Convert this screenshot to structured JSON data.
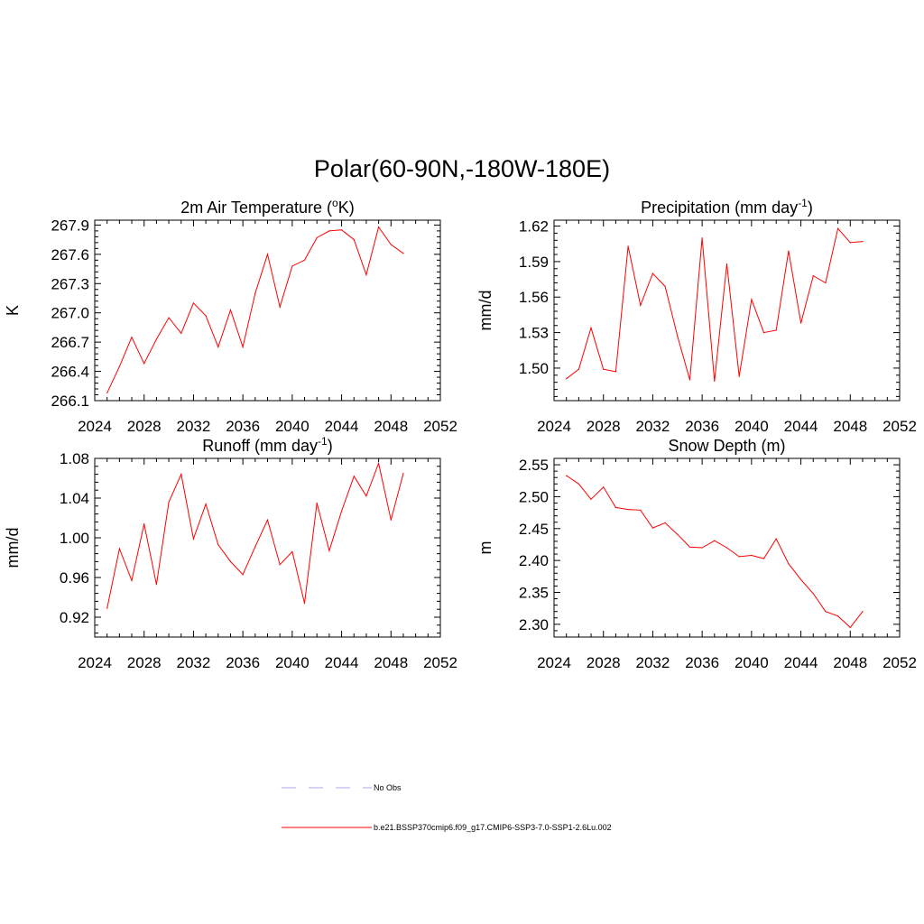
{
  "figure": {
    "title": "Polar(60-90N,-180W-180E)"
  },
  "colors": {
    "model": "#ff0000",
    "obs": "#aaaaee"
  },
  "legend": {
    "items": [
      {
        "label": "No Obs",
        "style": "dashed",
        "color": "#aaaaee"
      },
      {
        "label": "b.e21.BSSP370cmip6.f09_g17.CMIP6-SSP3-7.0-SSP1-2.6Lu.002",
        "style": "solid",
        "color": "#ff0000"
      }
    ]
  },
  "chart_data": [
    {
      "type": "line",
      "title": "2m Air Temperature (",
      "title_super": "o",
      "title_after": "K)",
      "ylabel": "K",
      "xlim": [
        2024,
        2052
      ],
      "xticks": [
        2024,
        2028,
        2032,
        2036,
        2040,
        2044,
        2048,
        2052
      ],
      "ylim": [
        266.1,
        267.95
      ],
      "yticks": [
        266.1,
        266.4,
        266.7,
        267.0,
        267.3,
        267.6,
        267.9
      ],
      "ytick_labels": [
        "266.1",
        "266.4",
        "266.7",
        "267.0",
        "267.3",
        "267.6",
        "267.9"
      ],
      "series": [
        {
          "x": [
            2025,
            2026,
            2027,
            2028,
            2029,
            2030,
            2031,
            2032,
            2033,
            2034,
            2035,
            2036,
            2037,
            2038,
            2039,
            2040,
            2041,
            2042,
            2043,
            2044,
            2045,
            2046,
            2047,
            2048,
            2049
          ],
          "values": [
            266.18,
            266.45,
            266.75,
            266.48,
            266.73,
            266.95,
            266.79,
            267.1,
            266.97,
            266.65,
            267.03,
            266.65,
            267.2,
            267.6,
            267.06,
            267.48,
            267.54,
            267.77,
            267.84,
            267.85,
            267.75,
            267.39,
            267.88,
            267.7,
            267.61
          ]
        }
      ]
    },
    {
      "type": "line",
      "title": "Precipitation (mm day",
      "title_super": "-1",
      "title_after": ")",
      "ylabel": "mm/d",
      "xlim": [
        2024,
        2052
      ],
      "xticks": [
        2024,
        2028,
        2032,
        2036,
        2040,
        2044,
        2048,
        2052
      ],
      "ylim": [
        1.4725,
        1.625
      ],
      "yticks": [
        1.5,
        1.53,
        1.56,
        1.59,
        1.62
      ],
      "ytick_labels": [
        "1.50",
        "1.53",
        "1.56",
        "1.59",
        "1.62"
      ],
      "series": [
        {
          "x": [
            2025,
            2026,
            2027,
            2028,
            2029,
            2030,
            2031,
            2032,
            2033,
            2034,
            2035,
            2036,
            2037,
            2038,
            2039,
            2040,
            2041,
            2042,
            2043,
            2044,
            2045,
            2046,
            2047,
            2048,
            2049
          ],
          "values": [
            1.491,
            1.499,
            1.534,
            1.499,
            1.497,
            1.603,
            1.553,
            1.58,
            1.569,
            1.527,
            1.49,
            1.61,
            1.489,
            1.588,
            1.493,
            1.558,
            1.53,
            1.532,
            1.599,
            1.538,
            1.578,
            1.572,
            1.618,
            1.606,
            1.607
          ]
        }
      ]
    },
    {
      "type": "line",
      "title": "Runoff (mm day",
      "title_super": "-1",
      "title_after": ")",
      "ylabel": "mm/d",
      "xlim": [
        2024,
        2052
      ],
      "xticks": [
        2024,
        2028,
        2032,
        2036,
        2040,
        2044,
        2048,
        2052
      ],
      "ylim": [
        0.9,
        1.08
      ],
      "yticks": [
        0.92,
        0.96,
        1.0,
        1.04,
        1.08
      ],
      "ytick_labels": [
        "0.92",
        "0.96",
        "1.00",
        "1.04",
        "1.08"
      ],
      "series": [
        {
          "x": [
            2025,
            2026,
            2027,
            2028,
            2029,
            2030,
            2031,
            2032,
            2033,
            2034,
            2035,
            2036,
            2037,
            2038,
            2039,
            2040,
            2041,
            2042,
            2043,
            2044,
            2045,
            2046,
            2047,
            2048,
            2049
          ],
          "values": [
            0.929,
            0.989,
            0.957,
            1.014,
            0.953,
            1.036,
            1.064,
            0.999,
            1.034,
            0.993,
            0.976,
            0.963,
            0.991,
            1.018,
            0.973,
            0.986,
            0.934,
            1.035,
            0.987,
            1.027,
            1.062,
            1.042,
            1.075,
            1.018,
            1.065
          ]
        }
      ]
    },
    {
      "type": "line",
      "title": "Snow Depth (m)",
      "title_super": "",
      "title_after": "",
      "ylabel": "m",
      "xlim": [
        2024,
        2052
      ],
      "xticks": [
        2024,
        2028,
        2032,
        2036,
        2040,
        2044,
        2048,
        2052
      ],
      "ylim": [
        2.28,
        2.56
      ],
      "yticks": [
        2.3,
        2.35,
        2.4,
        2.45,
        2.5,
        2.55
      ],
      "ytick_labels": [
        "2.30",
        "2.35",
        "2.40",
        "2.45",
        "2.50",
        "2.55"
      ],
      "series": [
        {
          "x": [
            2025,
            2026,
            2027,
            2028,
            2029,
            2030,
            2031,
            2032,
            2033,
            2034,
            2035,
            2036,
            2037,
            2038,
            2039,
            2040,
            2041,
            2042,
            2043,
            2044,
            2045,
            2046,
            2047,
            2048,
            2049
          ],
          "values": [
            2.533,
            2.52,
            2.496,
            2.515,
            2.483,
            2.48,
            2.479,
            2.451,
            2.459,
            2.441,
            2.421,
            2.42,
            2.431,
            2.42,
            2.406,
            2.408,
            2.403,
            2.434,
            2.395,
            2.37,
            2.348,
            2.32,
            2.313,
            2.295,
            2.32
          ]
        }
      ]
    }
  ]
}
